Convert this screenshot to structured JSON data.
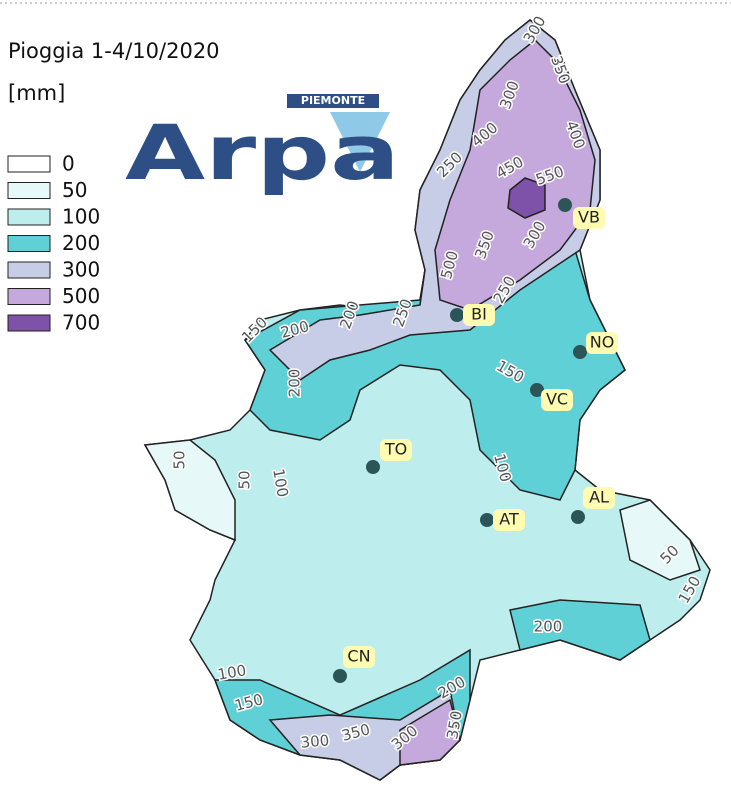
{
  "header": {
    "title": "Pioggia 1-4/10/2020",
    "unit": "[mm]"
  },
  "logo": {
    "name": "Arpa",
    "region": "PIEMONTE"
  },
  "legend": [
    {
      "label": "0",
      "color": "#ffffff"
    },
    {
      "label": "50",
      "color": "#e6f8f7"
    },
    {
      "label": "100",
      "color": "#bdeeed"
    },
    {
      "label": "200",
      "color": "#5fd0d6"
    },
    {
      "label": "300",
      "color": "#c7cde6"
    },
    {
      "label": "500",
      "color": "#c6a9dc"
    },
    {
      "label": "700",
      "color": "#7d52a8"
    }
  ],
  "cities": [
    "TO",
    "AT",
    "AL",
    "CN",
    "BI",
    "VB",
    "NO",
    "VC"
  ],
  "contour_labels": [
    "300",
    "350",
    "300",
    "400",
    "400",
    "250",
    "450",
    "550",
    "500",
    "350",
    "300",
    "250",
    "150",
    "200",
    "200",
    "250",
    "200",
    "150",
    "100",
    "50",
    "50",
    "100",
    "50",
    "150",
    "200",
    "100",
    "150",
    "200",
    "350",
    "300",
    "350",
    "300"
  ]
}
